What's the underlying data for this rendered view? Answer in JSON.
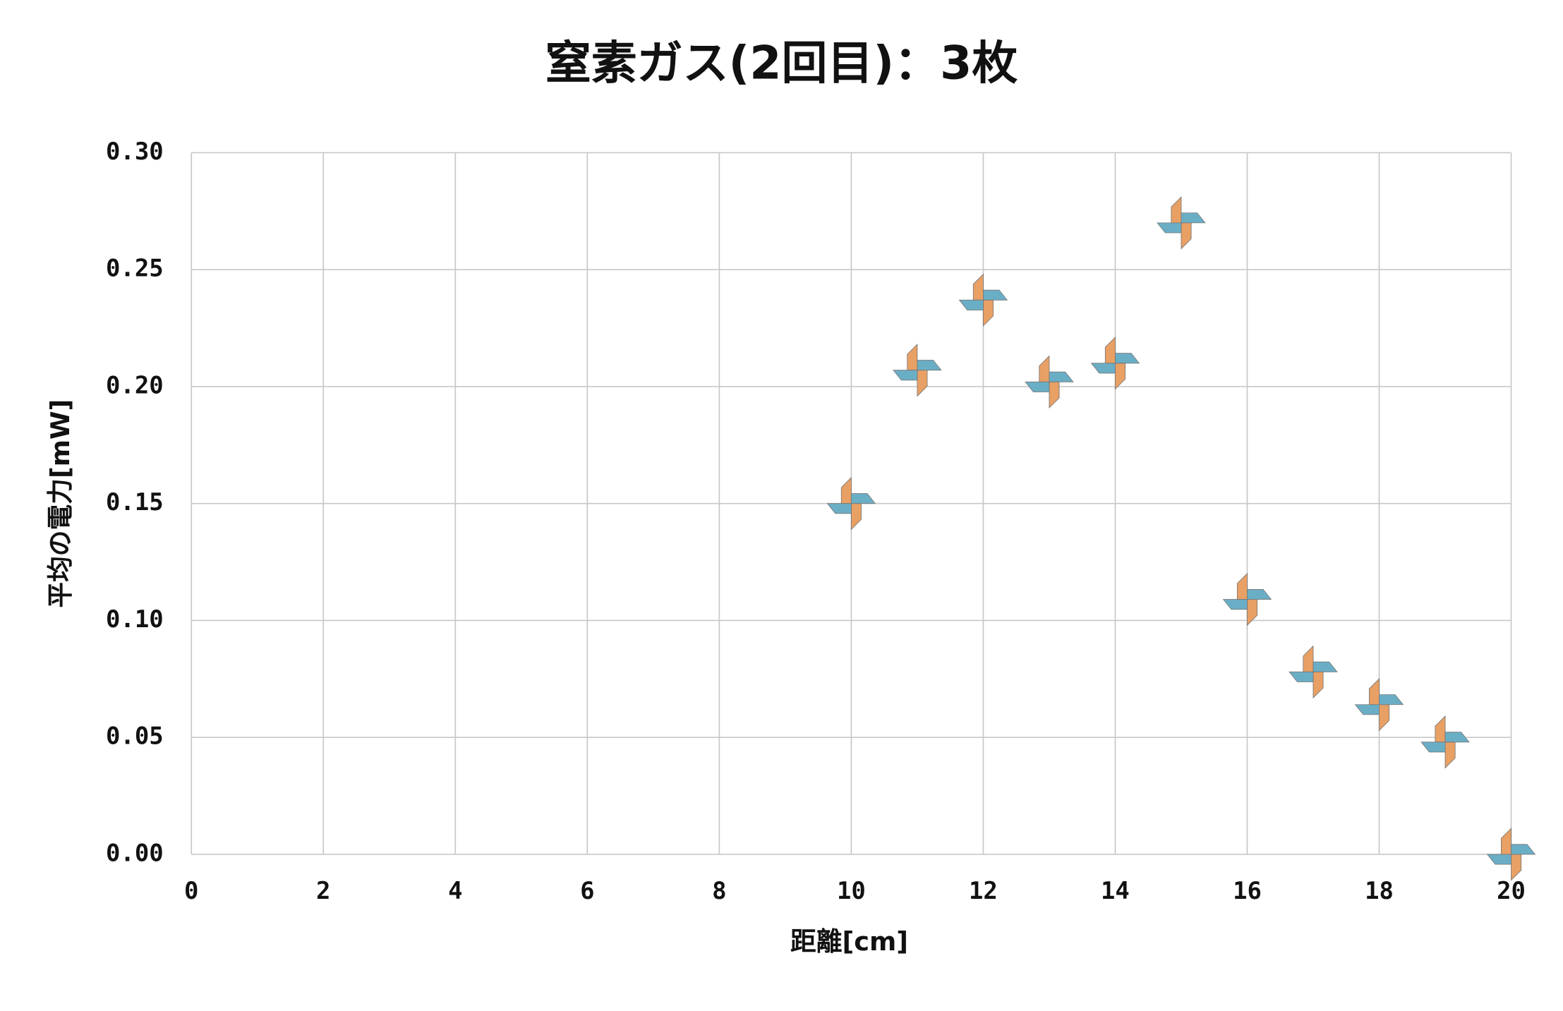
{
  "chart_data": {
    "type": "scatter",
    "title": "窒素ガス(2回目)：3枚",
    "xlabel": "距離[cm]",
    "ylabel": "平均の電力[mW]",
    "x": [
      10,
      11,
      12,
      13,
      14,
      15,
      16,
      17,
      18,
      19,
      20
    ],
    "values": [
      0.15,
      0.207,
      0.237,
      0.202,
      0.21,
      0.27,
      0.109,
      0.078,
      0.064,
      0.048,
      0
    ],
    "colors": [
      "#e8a064",
      "#6aaec6"
    ],
    "xlim": [
      0,
      20
    ],
    "xticks": [
      0,
      2,
      4,
      6,
      8,
      10,
      12,
      14,
      16,
      18,
      20
    ],
    "ylim": [
      0,
      0.3
    ],
    "yticks": [
      {
        "value": 0,
        "label": "0.00"
      },
      {
        "value": 0.05,
        "label": "0.05"
      },
      {
        "value": 0.1,
        "label": "0.10"
      },
      {
        "value": 0.15,
        "label": "0.15"
      },
      {
        "value": 0.2,
        "label": "0.20"
      },
      {
        "value": 0.25,
        "label": "0.25"
      },
      {
        "value": 0.3,
        "label": "0.30"
      }
    ],
    "grid": true
  }
}
